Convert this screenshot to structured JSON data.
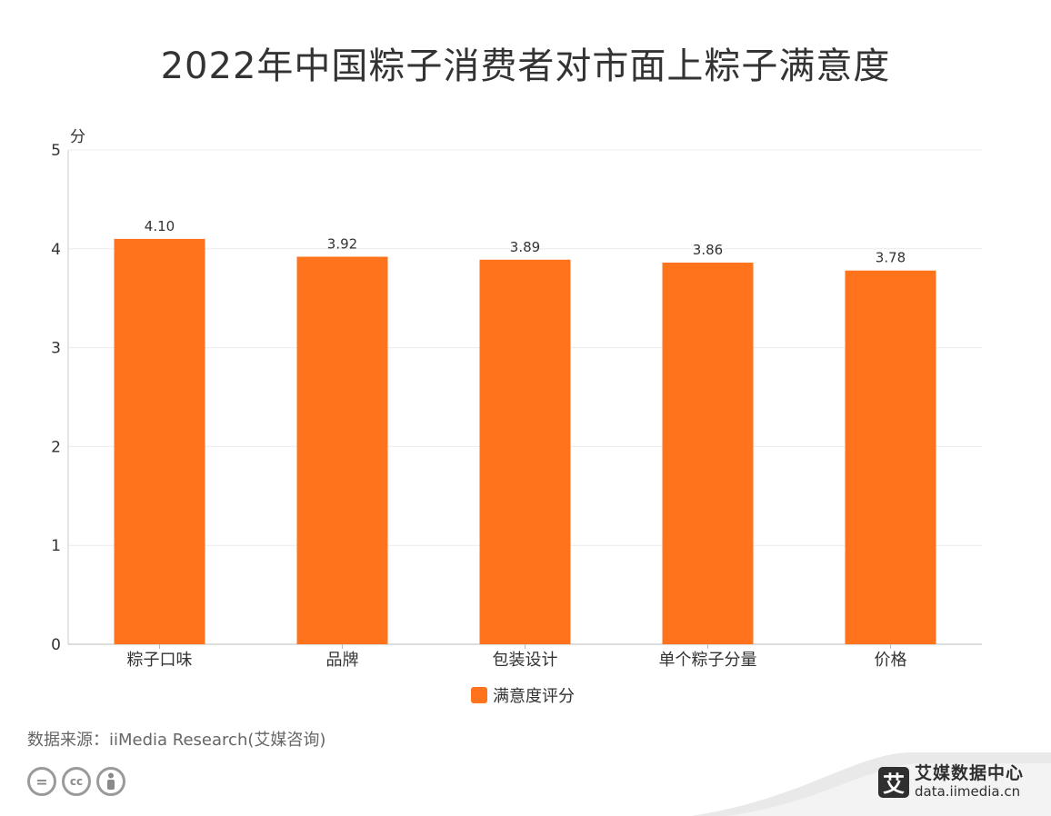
{
  "title": "2022年中国粽子消费者对市面上粽子满意度",
  "chart_data": {
    "type": "bar",
    "title": "2022年中国粽子消费者对市面上粽子满意度",
    "ylabel": "分",
    "xlabel": "",
    "ylim": [
      0,
      5
    ],
    "yticks": [
      "0",
      "1",
      "2",
      "3",
      "4",
      "5"
    ],
    "grid": true,
    "legend_position": "bottom",
    "categories": [
      "粽子口味",
      "品牌",
      "包装设计",
      "单个粽子分量",
      "价格"
    ],
    "series": [
      {
        "name": "满意度评分",
        "values": [
          4.1,
          3.92,
          3.89,
          3.86,
          3.78
        ],
        "labels": [
          "4.10",
          "3.92",
          "3.89",
          "3.86",
          "3.78"
        ],
        "color": "#ff731d"
      }
    ]
  },
  "legend": {
    "label": "满意度评分",
    "color": "#ff731d"
  },
  "source": "数据来源：iiMedia Research(艾媒咨询)",
  "license_icons": [
    "equals-icon",
    "cc-icon",
    "person-icon"
  ],
  "brand": {
    "mark": "艾",
    "name": "艾媒数据中心",
    "url": "data.iimedia.cn"
  }
}
